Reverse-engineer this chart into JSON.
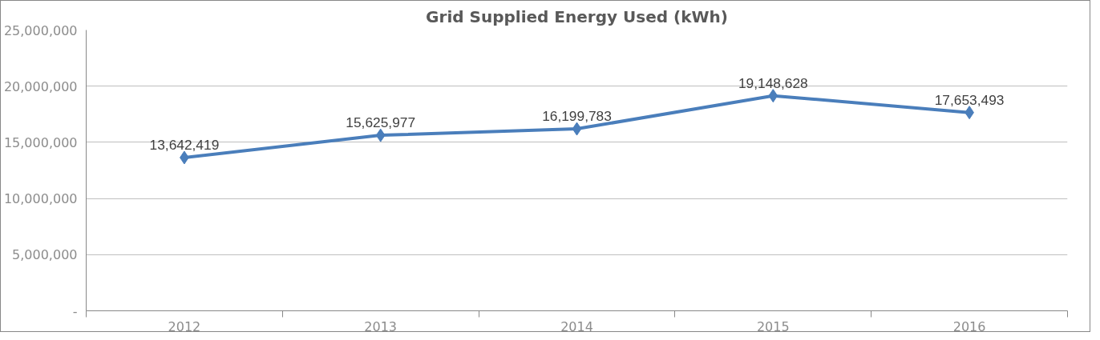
{
  "chart_data": {
    "type": "line",
    "title": "Grid Supplied Energy Used (kWh)",
    "categories": [
      "2012",
      "2013",
      "2014",
      "2015",
      "2016"
    ],
    "series": [
      {
        "color": "#4a7ebb",
        "values": [
          13642419,
          15625977,
          16199783,
          19148628,
          17653493
        ],
        "value_labels": [
          "13,642,419",
          "15,625,977",
          "16,199,783",
          "19,148,628",
          "17,653,493"
        ]
      }
    ],
    "ylim": [
      0,
      25000000
    ],
    "yticks": [
      {
        "value": 0,
        "label": "-"
      },
      {
        "value": 5000000,
        "label": "5,000,000"
      },
      {
        "value": 10000000,
        "label": "10,000,000"
      },
      {
        "value": 15000000,
        "label": "15,000,000"
      },
      {
        "value": 20000000,
        "label": "20,000,000"
      },
      {
        "value": 25000000,
        "label": "25,000,000"
      }
    ],
    "grid": "y",
    "marker": "diamond",
    "line_style": "solid"
  }
}
